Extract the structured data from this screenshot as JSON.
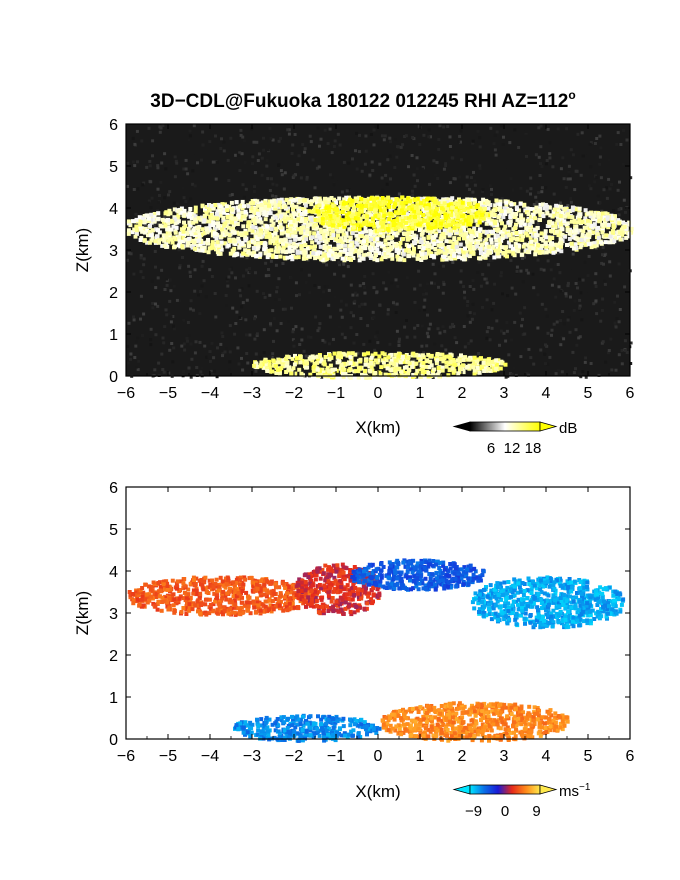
{
  "title": "3D−CDL@Fukuoka 180122 012245 RHI AZ=112",
  "title_degree": "o",
  "chart_data": [
    {
      "type": "heatmap",
      "name": "reflectivity",
      "xlabel": "X(km)",
      "ylabel": "Z(km)",
      "xlim": [
        -6,
        6
      ],
      "ylim": [
        0,
        6
      ],
      "xticks": [
        "−6",
        "−5",
        "−4",
        "−3",
        "−2",
        "−1",
        "0",
        "1",
        "2",
        "3",
        "4",
        "5",
        "6"
      ],
      "yticks": [
        "0",
        "1",
        "2",
        "3",
        "4",
        "5",
        "6"
      ],
      "colorbar": {
        "unit": "dB",
        "ticks": [
          "6",
          "12",
          "18"
        ],
        "range": [
          0,
          20
        ],
        "colors": [
          "#000000",
          "#ffffff",
          "#ffff00"
        ]
      },
      "background": "#1a1a1a",
      "features": [
        {
          "kind": "cloud layer",
          "x_range": [
            -6,
            6
          ],
          "z_range": [
            2.8,
            4.3
          ],
          "level_db": 12
        },
        {
          "kind": "strong echo",
          "x_range": [
            -1.7,
            2.6
          ],
          "z_range": [
            3.5,
            4.3
          ],
          "level_db": 18
        },
        {
          "kind": "ground clutter",
          "x_range": [
            -3,
            3
          ],
          "z_range": [
            0,
            0.6
          ],
          "level_db": 14
        }
      ]
    },
    {
      "type": "heatmap",
      "name": "radial_velocity",
      "xlabel": "X(km)",
      "ylabel": "Z(km)",
      "xlim": [
        -6,
        6
      ],
      "ylim": [
        0,
        6
      ],
      "xticks": [
        "−6",
        "−5",
        "−4",
        "−3",
        "−2",
        "−1",
        "0",
        "1",
        "2",
        "3",
        "4",
        "5",
        "6"
      ],
      "yticks": [
        "0",
        "1",
        "2",
        "3",
        "4",
        "5",
        "6"
      ],
      "colorbar": {
        "unit": "ms",
        "unit_exp": "−1",
        "ticks": [
          "−9",
          "0",
          "9"
        ],
        "range": [
          -10,
          10
        ],
        "colors": [
          "#00e5ff",
          "#0a6fe6",
          "#1a1ad6",
          "#e62a1a",
          "#ff8a1a",
          "#ffe94d"
        ]
      },
      "background": "#ffffff",
      "features": [
        {
          "kind": "cloud layer",
          "x_range": [
            -6,
            -1.5
          ],
          "z_range": [
            3.0,
            3.9
          ],
          "velocity": 4
        },
        {
          "kind": "cloud layer",
          "x_range": [
            -2,
            0
          ],
          "z_range": [
            3.0,
            4.2
          ],
          "velocity": 2
        },
        {
          "kind": "cloud layer",
          "x_range": [
            -0.7,
            2.5
          ],
          "z_range": [
            3.6,
            4.3
          ],
          "velocity": -5
        },
        {
          "kind": "cloud layer",
          "x_range": [
            2.2,
            5.8
          ],
          "z_range": [
            2.7,
            3.9
          ],
          "velocity": -8
        },
        {
          "kind": "low layer",
          "x_range": [
            -3.5,
            0
          ],
          "z_range": [
            0,
            0.6
          ],
          "velocity": -7
        },
        {
          "kind": "low layer",
          "x_range": [
            0,
            4.5
          ],
          "z_range": [
            0,
            0.9
          ],
          "velocity": 6
        }
      ]
    }
  ]
}
